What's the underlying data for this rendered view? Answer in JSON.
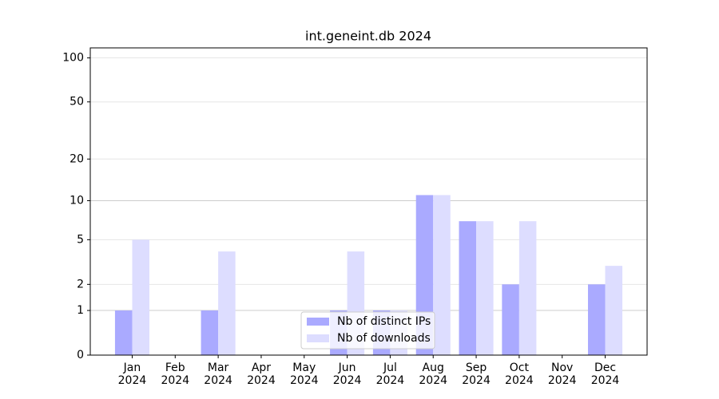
{
  "chart_data": {
    "type": "bar",
    "title": "int.geneint.db 2024",
    "categories": [
      "Jan\n2024",
      "Feb\n2024",
      "Mar\n2024",
      "Apr\n2024",
      "May\n2024",
      "Jun\n2024",
      "Jul\n2024",
      "Aug\n2024",
      "Sep\n2024",
      "Oct\n2024",
      "Nov\n2024",
      "Dec\n2024"
    ],
    "series": [
      {
        "name": "Nb of distinct IPs",
        "color": "#aaaaff",
        "values": [
          1,
          0,
          1,
          0,
          0,
          1,
          1,
          11,
          7,
          2,
          0,
          2
        ]
      },
      {
        "name": "Nb of downloads",
        "color": "#ddddff",
        "values": [
          5,
          0,
          4,
          0,
          0,
          4,
          1,
          11,
          7,
          7,
          0,
          3
        ]
      }
    ],
    "yscale": "log1p",
    "ylim": [
      0,
      117
    ],
    "yticks": [
      0,
      1,
      2,
      5,
      10,
      20,
      50,
      100
    ],
    "grid": true,
    "legend": "lower center"
  }
}
